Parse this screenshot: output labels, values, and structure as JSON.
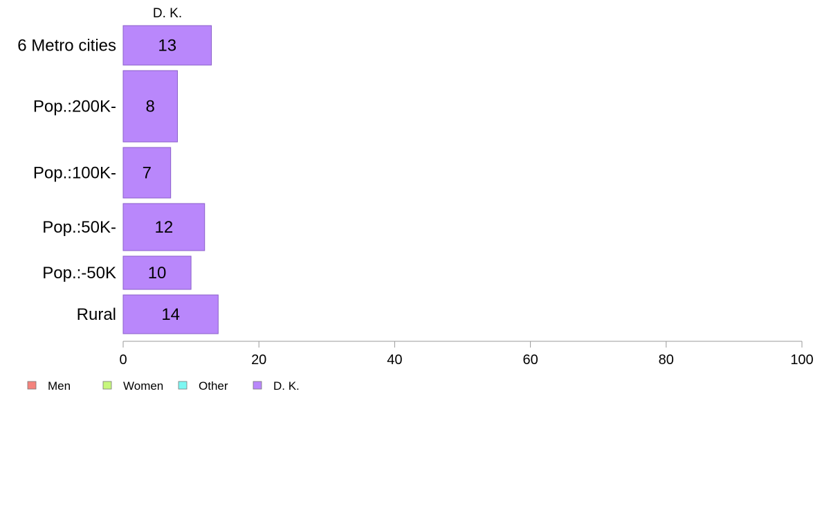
{
  "chart_data": {
    "type": "bar",
    "orientation": "horizontal",
    "panel_title": "D. K.",
    "categories": [
      "6 Metro cities",
      "Pop.:200K-",
      "Pop.:100K-",
      "Pop.:50K-",
      "Pop.:-50K",
      "Rural"
    ],
    "series": [
      {
        "name": "D. K.",
        "values": [
          13,
          8,
          7,
          12,
          10,
          14
        ],
        "color": "#b987fb"
      }
    ],
    "xlim": [
      0,
      100
    ],
    "xticks": [
      "0",
      "20",
      "40",
      "60",
      "80",
      "100"
    ],
    "data_labels": [
      "13",
      "8",
      "7",
      "12",
      "10",
      "14"
    ],
    "legend": {
      "placement": "bottom-left",
      "items": [
        {
          "label": "Men",
          "color": "#f4837d"
        },
        {
          "label": "Women",
          "color": "#c7f77d"
        },
        {
          "label": "Other",
          "color": "#7df7f2"
        },
        {
          "label": "D. K.",
          "color": "#b987fb"
        }
      ]
    },
    "grid": false
  }
}
